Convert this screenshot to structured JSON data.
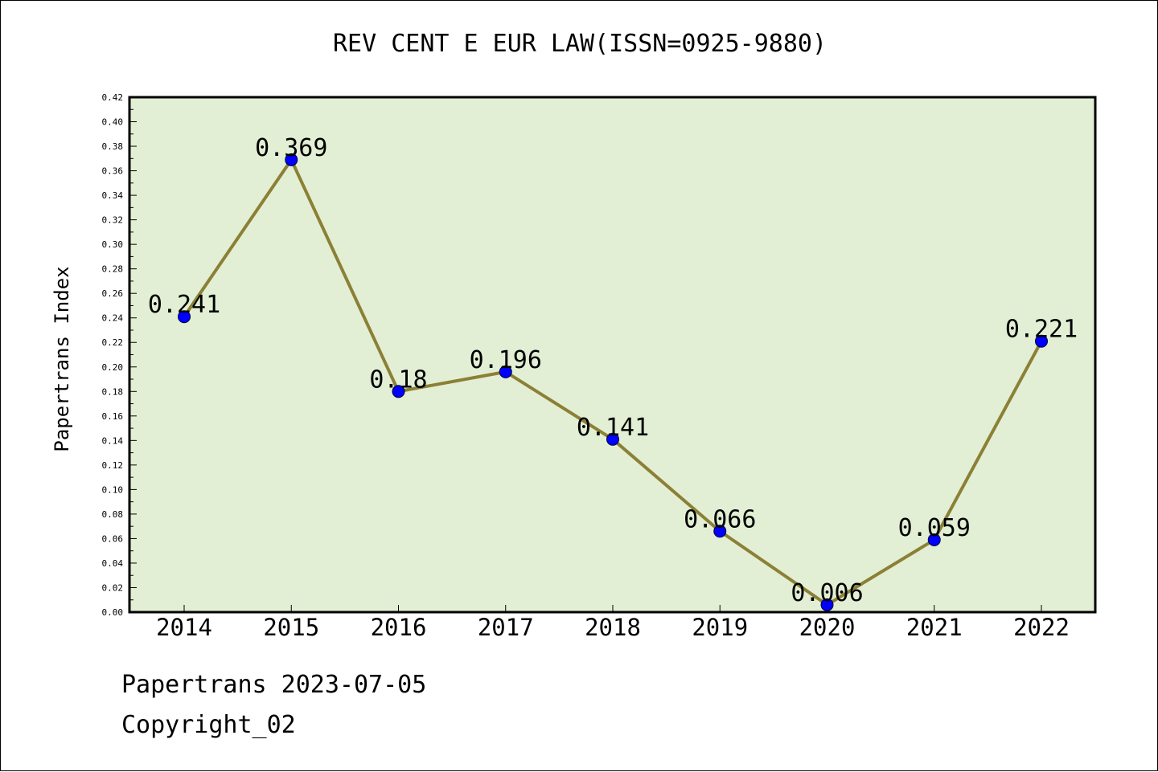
{
  "chart_data": {
    "type": "line",
    "title": "REV CENT E EUR LAW(ISSN=0925-9880)",
    "xlabel": "",
    "ylabel": "Papertrans Index",
    "categories": [
      "2014",
      "2015",
      "2016",
      "2017",
      "2018",
      "2019",
      "2020",
      "2021",
      "2022"
    ],
    "series": [
      {
        "values": [
          0.241,
          0.369,
          0.18,
          0.196,
          0.141,
          0.066,
          0.006,
          0.059,
          0.221
        ],
        "labels": [
          "0.241",
          "0.369",
          "0.18",
          "0.196",
          "0.141",
          "0.066",
          "0.006",
          "0.059",
          "0.221"
        ]
      }
    ],
    "ylim": [
      0,
      0.42
    ],
    "yticks": [
      "0.00",
      "0.02",
      "0.04",
      "0.06",
      "0.08",
      "0.10",
      "0.12",
      "0.14",
      "0.16",
      "0.18",
      "0.20",
      "0.22",
      "0.24",
      "0.26",
      "0.28",
      "0.30",
      "0.32",
      "0.34",
      "0.36",
      "0.38",
      "0.40",
      "0.42"
    ],
    "grid": false,
    "legend": "none",
    "colors": {
      "plot_background": "#e2efd5",
      "line": "#8b8035",
      "marker": "#0000ff"
    }
  },
  "footer": {
    "line1": "Papertrans 2023-07-05",
    "line2": "Copyright_02"
  }
}
